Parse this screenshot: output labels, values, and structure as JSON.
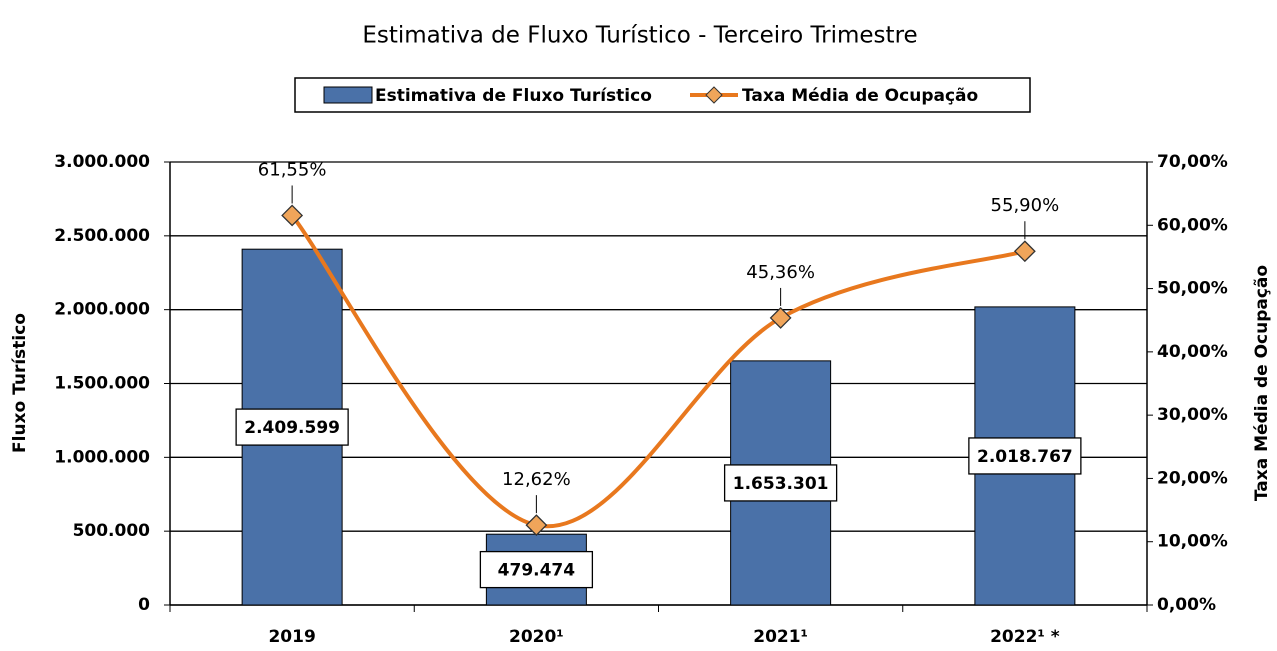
{
  "chart_data": {
    "type": "bar_line",
    "title": "Estimativa de Fluxo Turístico - Terceiro Trimestre",
    "categories": [
      "2019",
      "2020¹",
      "2021¹",
      "2022¹ *"
    ],
    "series": [
      {
        "name": "Estimativa de Fluxo Turístico",
        "type": "bar",
        "color": "#4a71a8",
        "values": [
          2409599,
          479474,
          1653301,
          2018767
        ],
        "value_labels": [
          "2.409.599",
          "479.474",
          "1.653.301",
          "2.018.767"
        ]
      },
      {
        "name": "Taxa Média de Ocupação",
        "type": "line",
        "axis": "y2",
        "color": "#e8781e",
        "values": [
          61.55,
          12.62,
          45.36,
          55.9
        ],
        "value_labels": [
          "61,55%",
          "12,62%",
          "45,36%",
          "55,90%"
        ]
      }
    ],
    "ylabel": "Fluxo Turístico",
    "y2label": "Taxa Média de Ocupação",
    "ylim": [
      0,
      3000000
    ],
    "yticks": [
      {
        "value": 0,
        "label": "0"
      },
      {
        "value": 500000,
        "label": "500.000"
      },
      {
        "value": 1000000,
        "label": "1.000.000"
      },
      {
        "value": 1500000,
        "label": "1.500.000"
      },
      {
        "value": 2000000,
        "label": "2.000.000"
      },
      {
        "value": 2500000,
        "label": "2.500.000"
      },
      {
        "value": 3000000,
        "label": "3.000.000"
      }
    ],
    "y2lim": [
      0,
      70
    ],
    "y2ticks": [
      {
        "value": 0,
        "label": "0,00%"
      },
      {
        "value": 10,
        "label": "10,00%"
      },
      {
        "value": 20,
        "label": "20,00%"
      },
      {
        "value": 30,
        "label": "30,00%"
      },
      {
        "value": 40,
        "label": "40,00%"
      },
      {
        "value": 50,
        "label": "50,00%"
      },
      {
        "value": 60,
        "label": "60,00%"
      },
      {
        "value": 70,
        "label": "70,00%"
      }
    ],
    "grid": true,
    "legend": "top"
  }
}
